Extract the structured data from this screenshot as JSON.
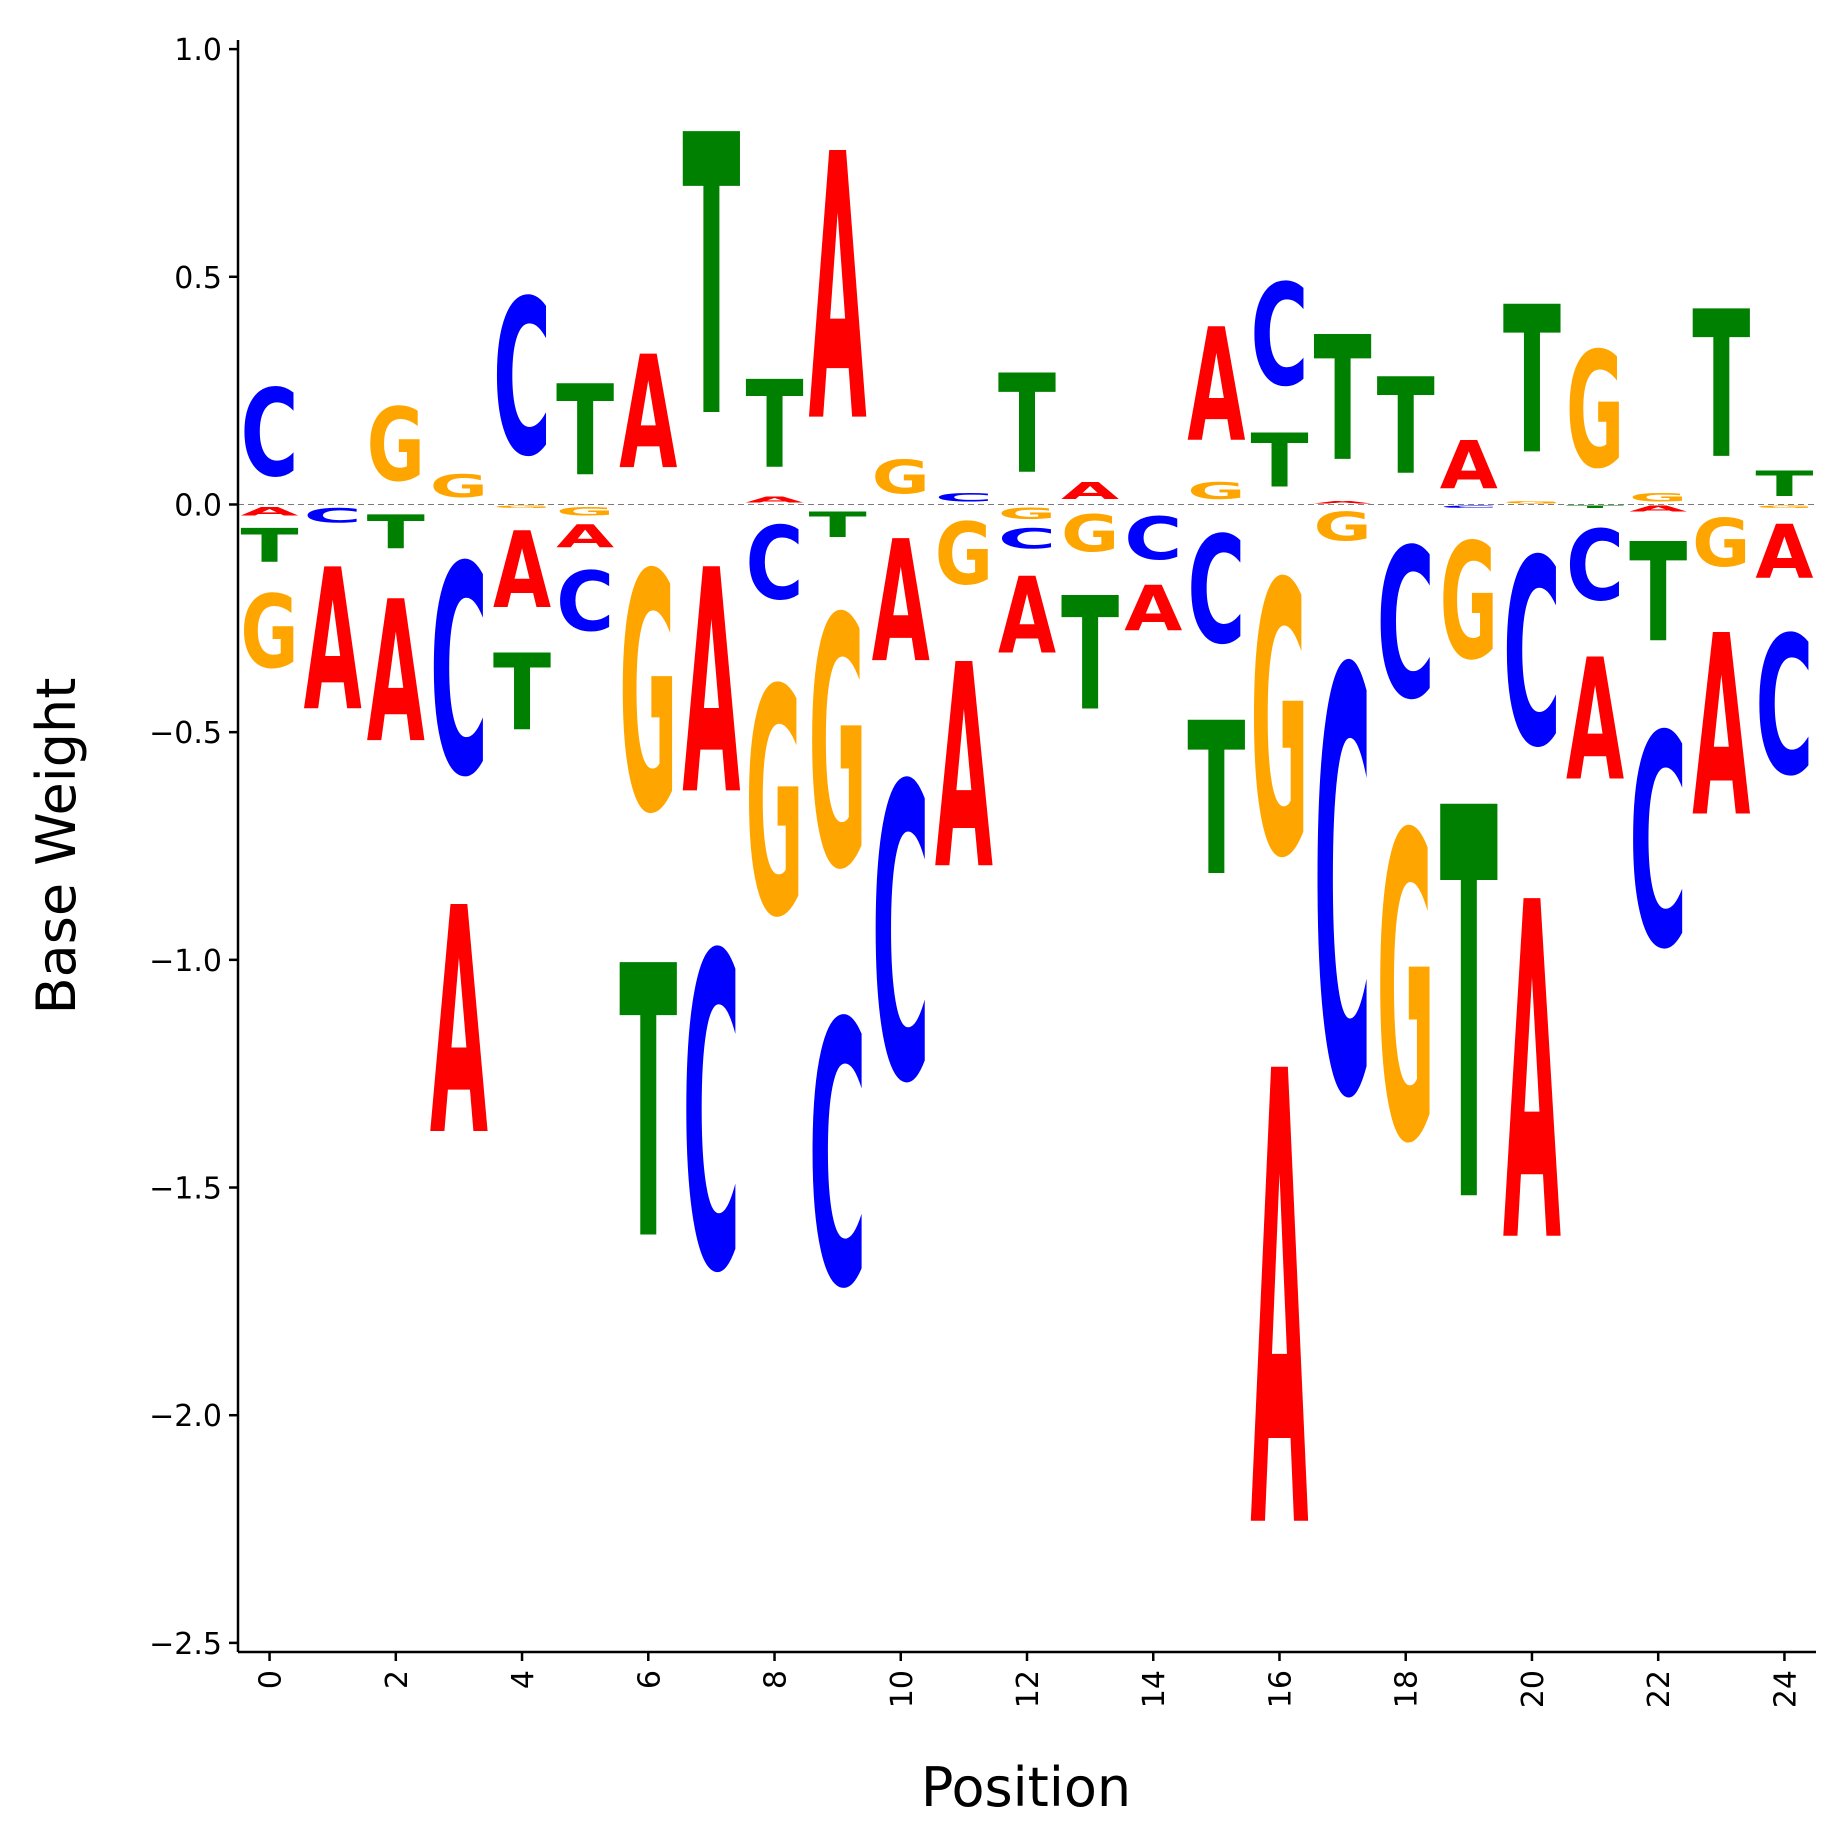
{
  "chart_data": {
    "type": "sequence-logo",
    "title": "",
    "xlabel": "Position",
    "ylabel": "Base Weight",
    "xlim": [
      -0.5,
      24.5
    ],
    "ylim": [
      -2.52,
      1.02
    ],
    "xticks": [
      0,
      2,
      4,
      6,
      8,
      10,
      12,
      14,
      16,
      18,
      20,
      22,
      24
    ],
    "xtick_labels": [
      "0",
      "2",
      "4",
      "6",
      "8",
      "10",
      "12",
      "14",
      "16",
      "18",
      "20",
      "22",
      "24"
    ],
    "yticks": [
      -2.5,
      -2.0,
      -1.5,
      -1.0,
      -0.5,
      0.0,
      0.5,
      1.0
    ],
    "ytick_labels": [
      "−2.5",
      "−2.0",
      "−1.5",
      "−1.0",
      "−0.5",
      "0.0",
      "0.5",
      "1.0"
    ],
    "grid": false,
    "colors": {
      "A": "#ff0000",
      "C": "#0000ff",
      "G": "#ffa500",
      "T": "#008000"
    },
    "positions": [
      {
        "pos": 0,
        "weights": {
          "A": -0.03,
          "C": 0.31,
          "G": -0.26,
          "T": -0.12
        }
      },
      {
        "pos": 1,
        "weights": {
          "A": -0.5,
          "C": -0.05,
          "G": 0.0,
          "T": 0.0
        }
      },
      {
        "pos": 2,
        "weights": {
          "A": -0.5,
          "C": 0.0,
          "G": 0.26,
          "T": -0.12
        }
      },
      {
        "pos": 3,
        "weights": {
          "A": -0.8,
          "C": -0.74,
          "G": 0.08,
          "T": 0.0
        }
      },
      {
        "pos": 4,
        "weights": {
          "A": -0.27,
          "C": 0.55,
          "G": -0.01,
          "T": -0.27
        }
      },
      {
        "pos": 5,
        "weights": {
          "A": -0.08,
          "C": -0.21,
          "G": -0.03,
          "T": 0.32
        }
      },
      {
        "pos": 6,
        "weights": {
          "A": 0.4,
          "C": 0.0,
          "G": -0.84,
          "T": -0.96
        }
      },
      {
        "pos": 7,
        "weights": {
          "A": -0.79,
          "C": -1.11,
          "G": 0.0,
          "T": 0.99
        }
      },
      {
        "pos": 8,
        "weights": {
          "A": 0.02,
          "C": -0.26,
          "G": -0.8,
          "T": 0.31
        }
      },
      {
        "pos": 9,
        "weights": {
          "A": 0.94,
          "C": -0.93,
          "G": -0.88,
          "T": -0.09
        }
      },
      {
        "pos": 10,
        "weights": {
          "A": -0.43,
          "C": -1.04,
          "G": 0.12,
          "T": 0.0
        }
      },
      {
        "pos": 11,
        "weights": {
          "A": -0.72,
          "C": 0.03,
          "G": -0.22,
          "T": 0.0
        }
      },
      {
        "pos": 12,
        "weights": {
          "A": -0.27,
          "C": -0.07,
          "G": -0.04,
          "T": 0.35
        }
      },
      {
        "pos": 13,
        "weights": {
          "A": 0.06,
          "C": 0.0,
          "G": -0.13,
          "T": -0.4
        }
      },
      {
        "pos": 14,
        "weights": {
          "A": -0.16,
          "C": -0.15,
          "G": 0.0,
          "T": 0.0
        }
      },
      {
        "pos": 15,
        "weights": {
          "A": 0.4,
          "C": -0.38,
          "G": 0.06,
          "T": -0.54
        }
      },
      {
        "pos": 16,
        "weights": {
          "A": -1.6,
          "C": 0.36,
          "G": -0.96,
          "T": 0.19
        }
      },
      {
        "pos": 17,
        "weights": {
          "A": 0.01,
          "C": -1.49,
          "G": -0.1,
          "T": 0.44
        }
      },
      {
        "pos": 18,
        "weights": {
          "A": 0.0,
          "C": -0.53,
          "G": -1.08,
          "T": 0.34
        }
      },
      {
        "pos": 19,
        "weights": {
          "A": 0.17,
          "C": -0.01,
          "G": -0.41,
          "T": -1.38
        }
      },
      {
        "pos": 20,
        "weights": {
          "A": -1.19,
          "C": -0.66,
          "G": 0.01,
          "T": 0.52
        }
      },
      {
        "pos": 21,
        "weights": {
          "A": -0.43,
          "C": -0.25,
          "G": 0.41,
          "T": -0.01
        }
      },
      {
        "pos": 22,
        "weights": {
          "A": -0.02,
          "C": -0.75,
          "G": 0.03,
          "T": -0.35
        }
      },
      {
        "pos": 23,
        "weights": {
          "A": -0.64,
          "C": 0.0,
          "G": -0.17,
          "T": 0.52
        }
      },
      {
        "pos": 24,
        "weights": {
          "A": -0.19,
          "C": -0.49,
          "G": -0.01,
          "T": 0.09
        }
      }
    ]
  }
}
